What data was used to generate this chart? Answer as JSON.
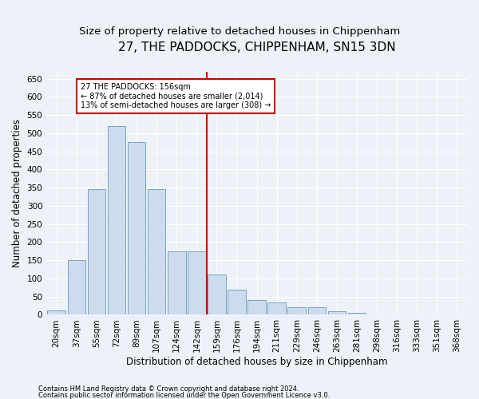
{
  "title1": "27, THE PADDOCKS, CHIPPENHAM, SN15 3DN",
  "title2": "Size of property relative to detached houses in Chippenham",
  "xlabel": "Distribution of detached houses by size in Chippenham",
  "ylabel": "Number of detached properties",
  "footnote1": "Contains HM Land Registry data © Crown copyright and database right 2024.",
  "footnote2": "Contains public sector information licensed under the Open Government Licence v3.0.",
  "categories": [
    "20sqm",
    "37sqm",
    "55sqm",
    "72sqm",
    "89sqm",
    "107sqm",
    "124sqm",
    "142sqm",
    "159sqm",
    "176sqm",
    "194sqm",
    "211sqm",
    "229sqm",
    "246sqm",
    "263sqm",
    "281sqm",
    "298sqm",
    "316sqm",
    "333sqm",
    "351sqm",
    "368sqm"
  ],
  "values": [
    12,
    150,
    345,
    520,
    475,
    345,
    175,
    175,
    110,
    70,
    40,
    35,
    20,
    20,
    10,
    5,
    2,
    2,
    1,
    1,
    2
  ],
  "bar_color": "#ccdcee",
  "bar_edge_color": "#6699bb",
  "vline_position": 8,
  "vline_color": "#cc0000",
  "annotation_text": "27 THE PADDOCKS: 156sqm\n← 87% of detached houses are smaller (2,014)\n13% of semi-detached houses are larger (308) →",
  "annotation_box_color": "#cc0000",
  "ylim": [
    0,
    670
  ],
  "yticks": [
    0,
    50,
    100,
    150,
    200,
    250,
    300,
    350,
    400,
    450,
    500,
    550,
    600,
    650
  ],
  "bg_color": "#edf2f8",
  "grid_color": "#d8e0ec",
  "title_fontsize": 11,
  "subtitle_fontsize": 9.5,
  "axis_label_fontsize": 8.5,
  "tick_fontsize": 7.5,
  "footnote_fontsize": 6
}
